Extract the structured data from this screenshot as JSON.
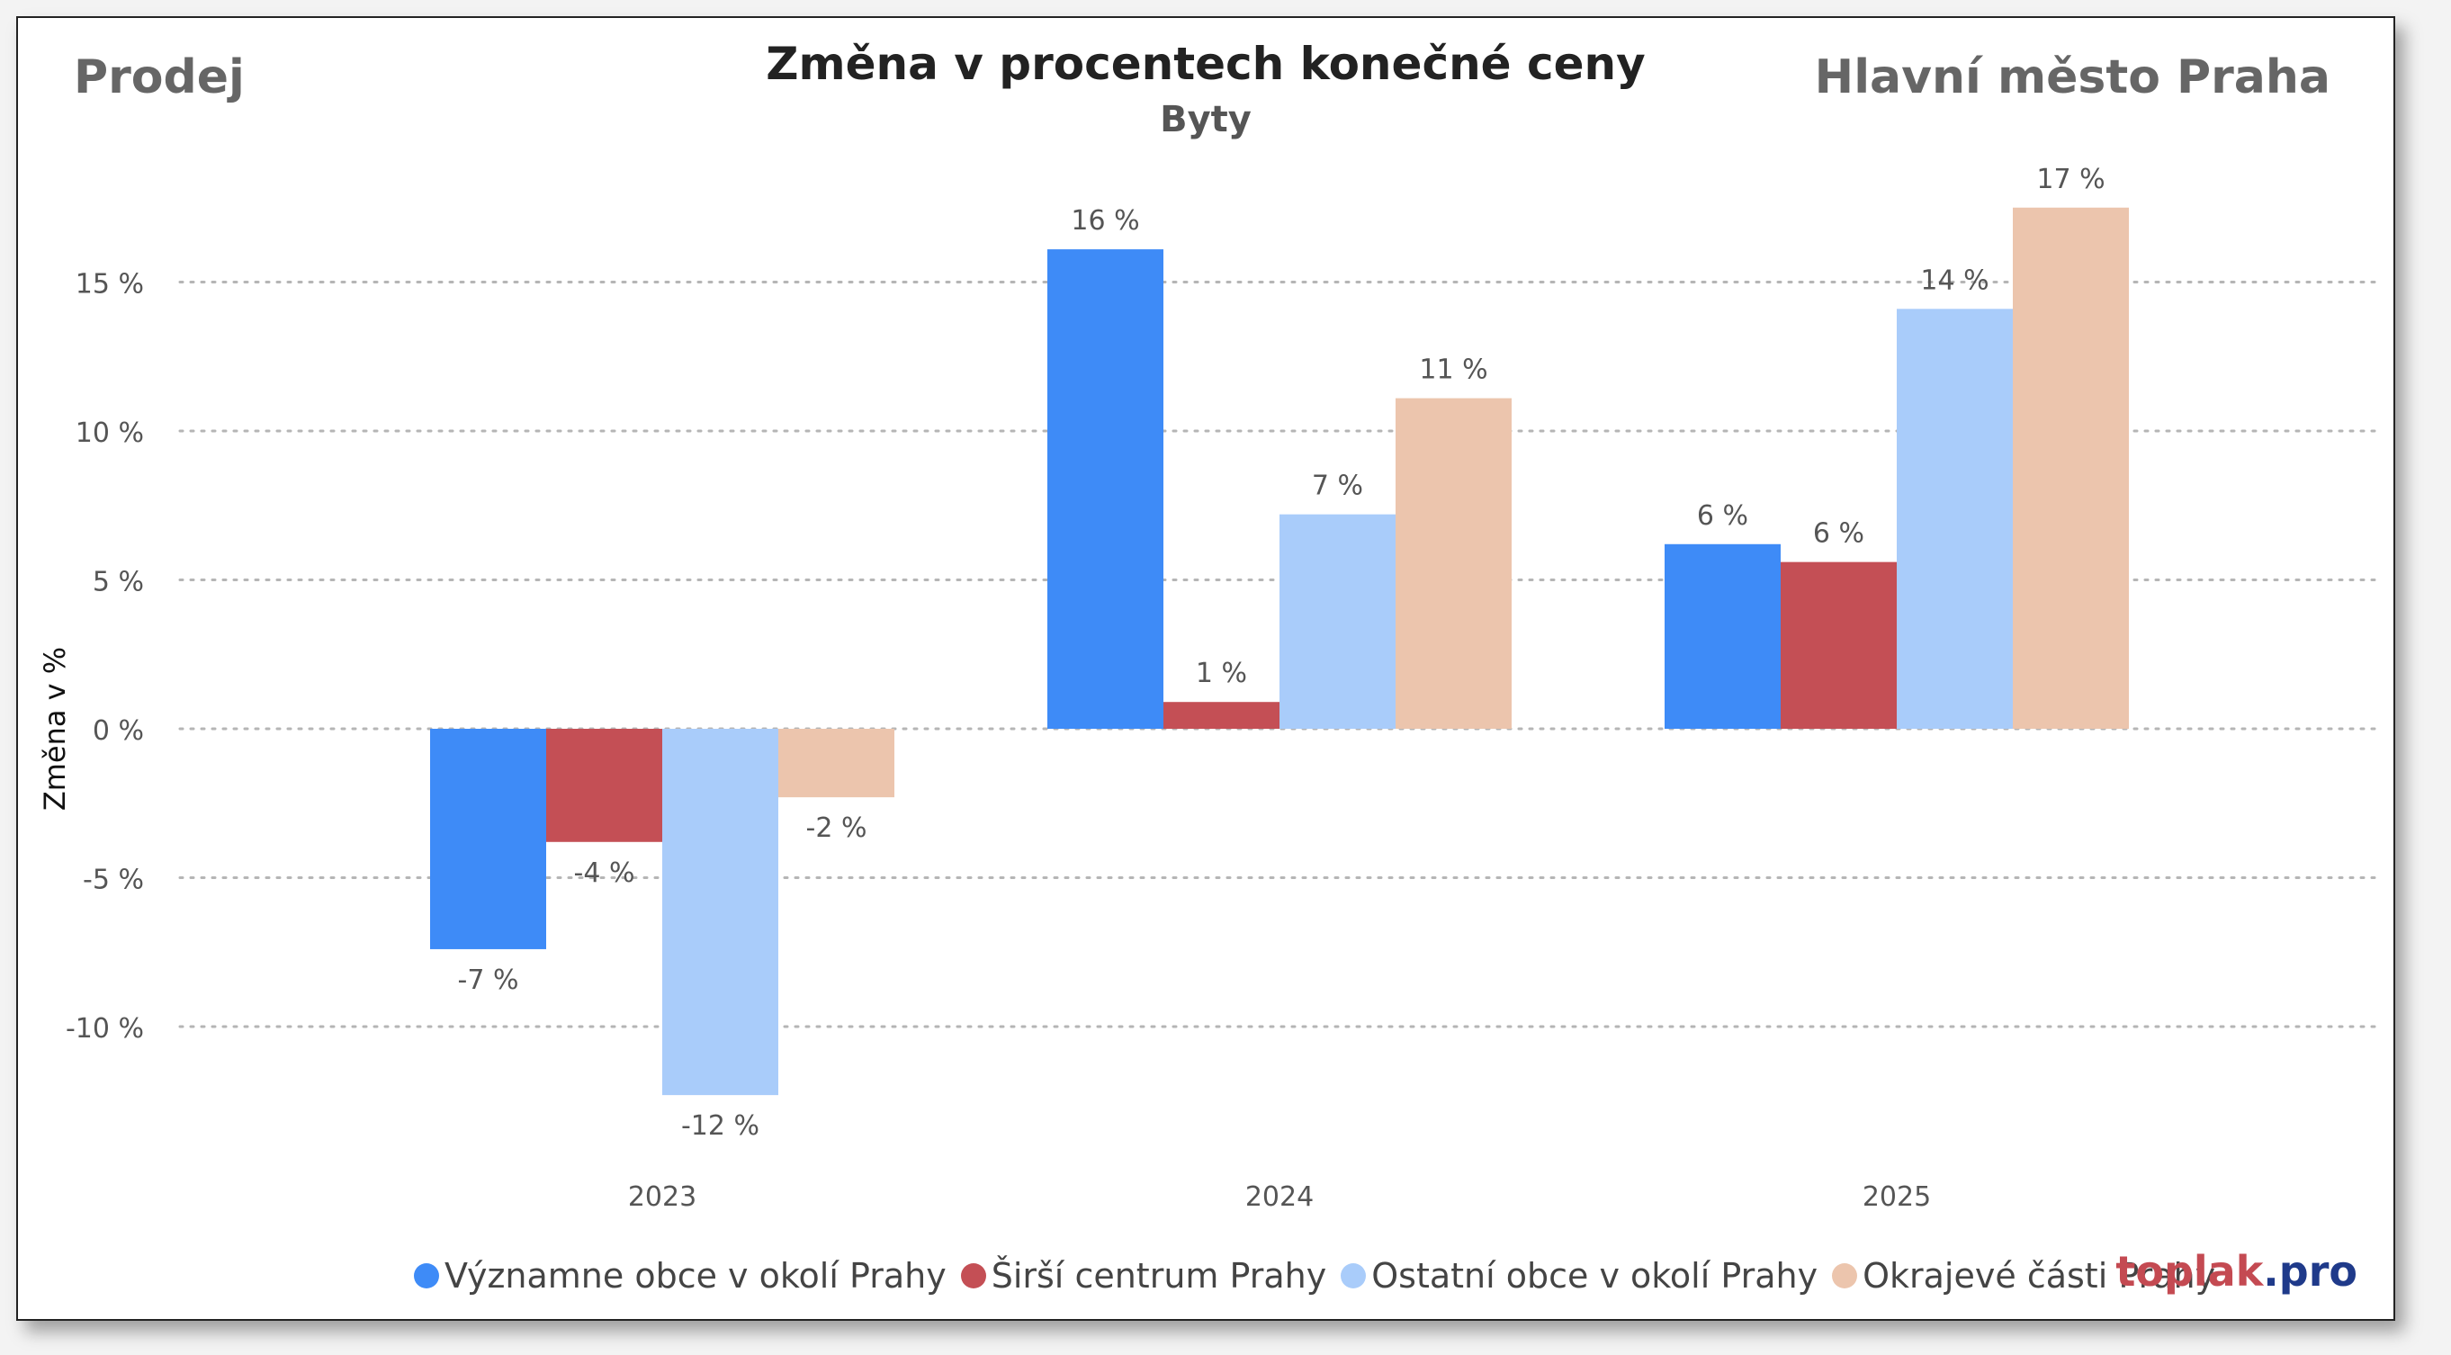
{
  "header": {
    "left_label": "Prodej",
    "right_label": "Hlavní město Praha"
  },
  "brand": {
    "name": "toplak",
    "suffix": ".pro"
  },
  "chart_data": {
    "type": "bar",
    "title": "Změna v procentech konečné ceny",
    "subtitle": "Byty",
    "ylabel": "Změna v %",
    "xlabel": "",
    "ylim": [
      -12.5,
      18.5
    ],
    "yticks": [
      -10,
      -5,
      0,
      5,
      10,
      15
    ],
    "ytick_labels": [
      "-10 %",
      "-5 %",
      "0 %",
      "5 %",
      "10 %",
      "15 %"
    ],
    "grid": true,
    "legend_position": "bottom",
    "categories": [
      "2023",
      "2024",
      "2025"
    ],
    "series": [
      {
        "name": "Významne obce v okolí Prahy",
        "color": "#3e8bf7",
        "values": [
          -7.4,
          16.1,
          6.2
        ],
        "labels": [
          "-7 %",
          "16 %",
          "6 %"
        ]
      },
      {
        "name": "Širší centrum Prahy",
        "color": "#c44f55",
        "values": [
          -3.8,
          0.9,
          5.6
        ],
        "labels": [
          "-4 %",
          "1 %",
          "6 %"
        ]
      },
      {
        "name": "Ostatní obce v okolí Prahy",
        "color": "#a9ccfa",
        "values": [
          -12.3,
          7.2,
          14.1
        ],
        "labels": [
          "-12 %",
          "7 %",
          "14 %"
        ]
      },
      {
        "name": "Okrajevé části Prahy",
        "color": "#ecc5ad",
        "values": [
          -2.3,
          11.1,
          17.5
        ],
        "labels": [
          "-2 %",
          "11 %",
          "17 %"
        ]
      }
    ]
  }
}
